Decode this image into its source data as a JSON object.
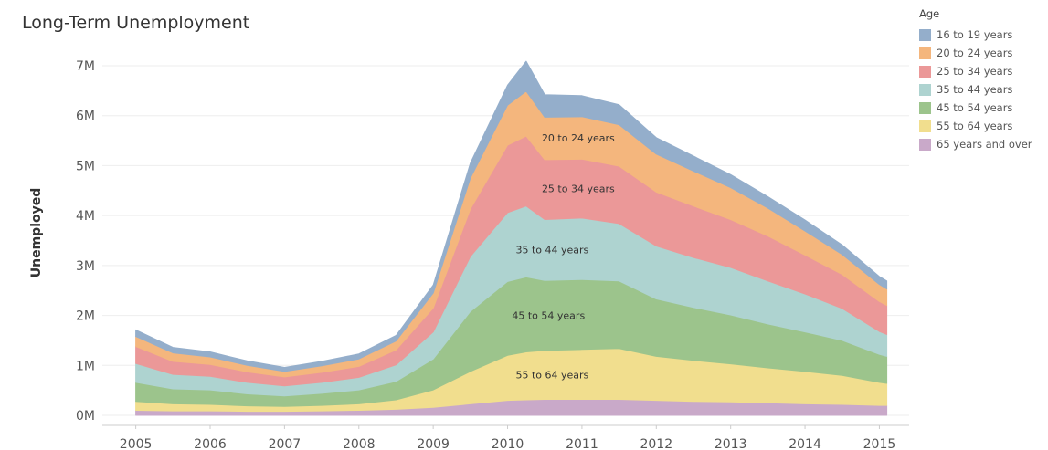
{
  "chart_data": {
    "type": "area",
    "title": "Long-Term Unemployment",
    "ylabel": "Unemployed",
    "xlabel": "",
    "stacked": true,
    "x": [
      2005.0,
      2005.5,
      2006.0,
      2006.5,
      2007.0,
      2007.5,
      2008.0,
      2008.5,
      2009.0,
      2009.5,
      2010.0,
      2010.25,
      2010.5,
      2011.0,
      2011.5,
      2012.0,
      2012.5,
      2013.0,
      2013.5,
      2014.0,
      2014.5,
      2015.0,
      2015.1
    ],
    "xticks": [
      "2005",
      "2006",
      "2007",
      "2008",
      "2009",
      "2010",
      "2011",
      "2012",
      "2013",
      "2014",
      "2015"
    ],
    "yticks": [
      "0M",
      "1M",
      "2M",
      "3M",
      "4M",
      "5M",
      "6M",
      "7M"
    ],
    "ylim": [
      0,
      7300000
    ],
    "series": [
      {
        "name": "65 years and over",
        "color": "#c9a9c9",
        "values": [
          100000,
          90000,
          90000,
          80000,
          80000,
          90000,
          100000,
          120000,
          160000,
          230000,
          300000,
          310000,
          320000,
          320000,
          320000,
          300000,
          280000,
          270000,
          250000,
          230000,
          220000,
          200000,
          200000
        ]
      },
      {
        "name": "55 to 64 years",
        "color": "#f1de8e",
        "values": [
          180000,
          140000,
          130000,
          110000,
          100000,
          110000,
          130000,
          190000,
          350000,
          650000,
          900000,
          960000,
          980000,
          1000000,
          1020000,
          880000,
          820000,
          760000,
          700000,
          650000,
          580000,
          460000,
          440000
        ]
      },
      {
        "name": "45 to 54 years",
        "color": "#9cc48c",
        "values": [
          380000,
          300000,
          290000,
          240000,
          210000,
          240000,
          280000,
          370000,
          620000,
          1200000,
          1480000,
          1500000,
          1400000,
          1400000,
          1350000,
          1150000,
          1060000,
          980000,
          880000,
          790000,
          700000,
          560000,
          540000
        ]
      },
      {
        "name": "35 to 44 years",
        "color": "#aed3d0",
        "values": [
          380000,
          290000,
          270000,
          230000,
          200000,
          220000,
          250000,
          330000,
          540000,
          1100000,
          1380000,
          1420000,
          1220000,
          1230000,
          1150000,
          1060000,
          1000000,
          950000,
          860000,
          760000,
          640000,
          460000,
          440000
        ]
      },
      {
        "name": "25 to 34 years",
        "color": "#eb9898",
        "values": [
          340000,
          260000,
          240000,
          210000,
          180000,
          200000,
          220000,
          300000,
          480000,
          950000,
          1350000,
          1400000,
          1200000,
          1180000,
          1150000,
          1080000,
          1030000,
          960000,
          900000,
          780000,
          680000,
          600000,
          580000
        ]
      },
      {
        "name": "20 to 24 years",
        "color": "#f4b67d",
        "values": [
          200000,
          170000,
          150000,
          130000,
          110000,
          130000,
          150000,
          180000,
          300000,
          620000,
          800000,
          900000,
          850000,
          850000,
          830000,
          760000,
          700000,
          640000,
          560000,
          480000,
          400000,
          340000,
          330000
        ]
      },
      {
        "name": "16 to 19 years",
        "color": "#94aecb",
        "values": [
          130000,
          110000,
          100000,
          90000,
          80000,
          90000,
          100000,
          110000,
          160000,
          300000,
          400000,
          600000,
          450000,
          420000,
          400000,
          330000,
          300000,
          260000,
          230000,
          220000,
          190000,
          160000,
          160000
        ]
      }
    ],
    "annotations": [
      {
        "text": "20 to 24 years",
        "series": "20 to 24 years",
        "x": 2010.95
      },
      {
        "text": "25 to 34 years",
        "series": "25 to 34 years",
        "x": 2010.95
      },
      {
        "text": "35 to 44 years",
        "series": "35 to 44 years",
        "x": 2010.6
      },
      {
        "text": "45 to 54 years",
        "series": "45 to 54 years",
        "x": 2010.55
      },
      {
        "text": "55 to 64 years",
        "series": "55 to 64 years",
        "x": 2010.6
      }
    ],
    "grid": true,
    "legend_position": "right"
  },
  "legend": {
    "title": "Age",
    "items": [
      {
        "label": "16 to 19 years",
        "color": "#94aecb"
      },
      {
        "label": "20 to 24 years",
        "color": "#f4b67d"
      },
      {
        "label": "25 to 34 years",
        "color": "#eb9898"
      },
      {
        "label": "35 to 44 years",
        "color": "#aed3d0"
      },
      {
        "label": "45 to 54 years",
        "color": "#9cc48c"
      },
      {
        "label": "55 to 64 years",
        "color": "#f1de8e"
      },
      {
        "label": "65 years and over",
        "color": "#c9a9c9"
      }
    ]
  }
}
